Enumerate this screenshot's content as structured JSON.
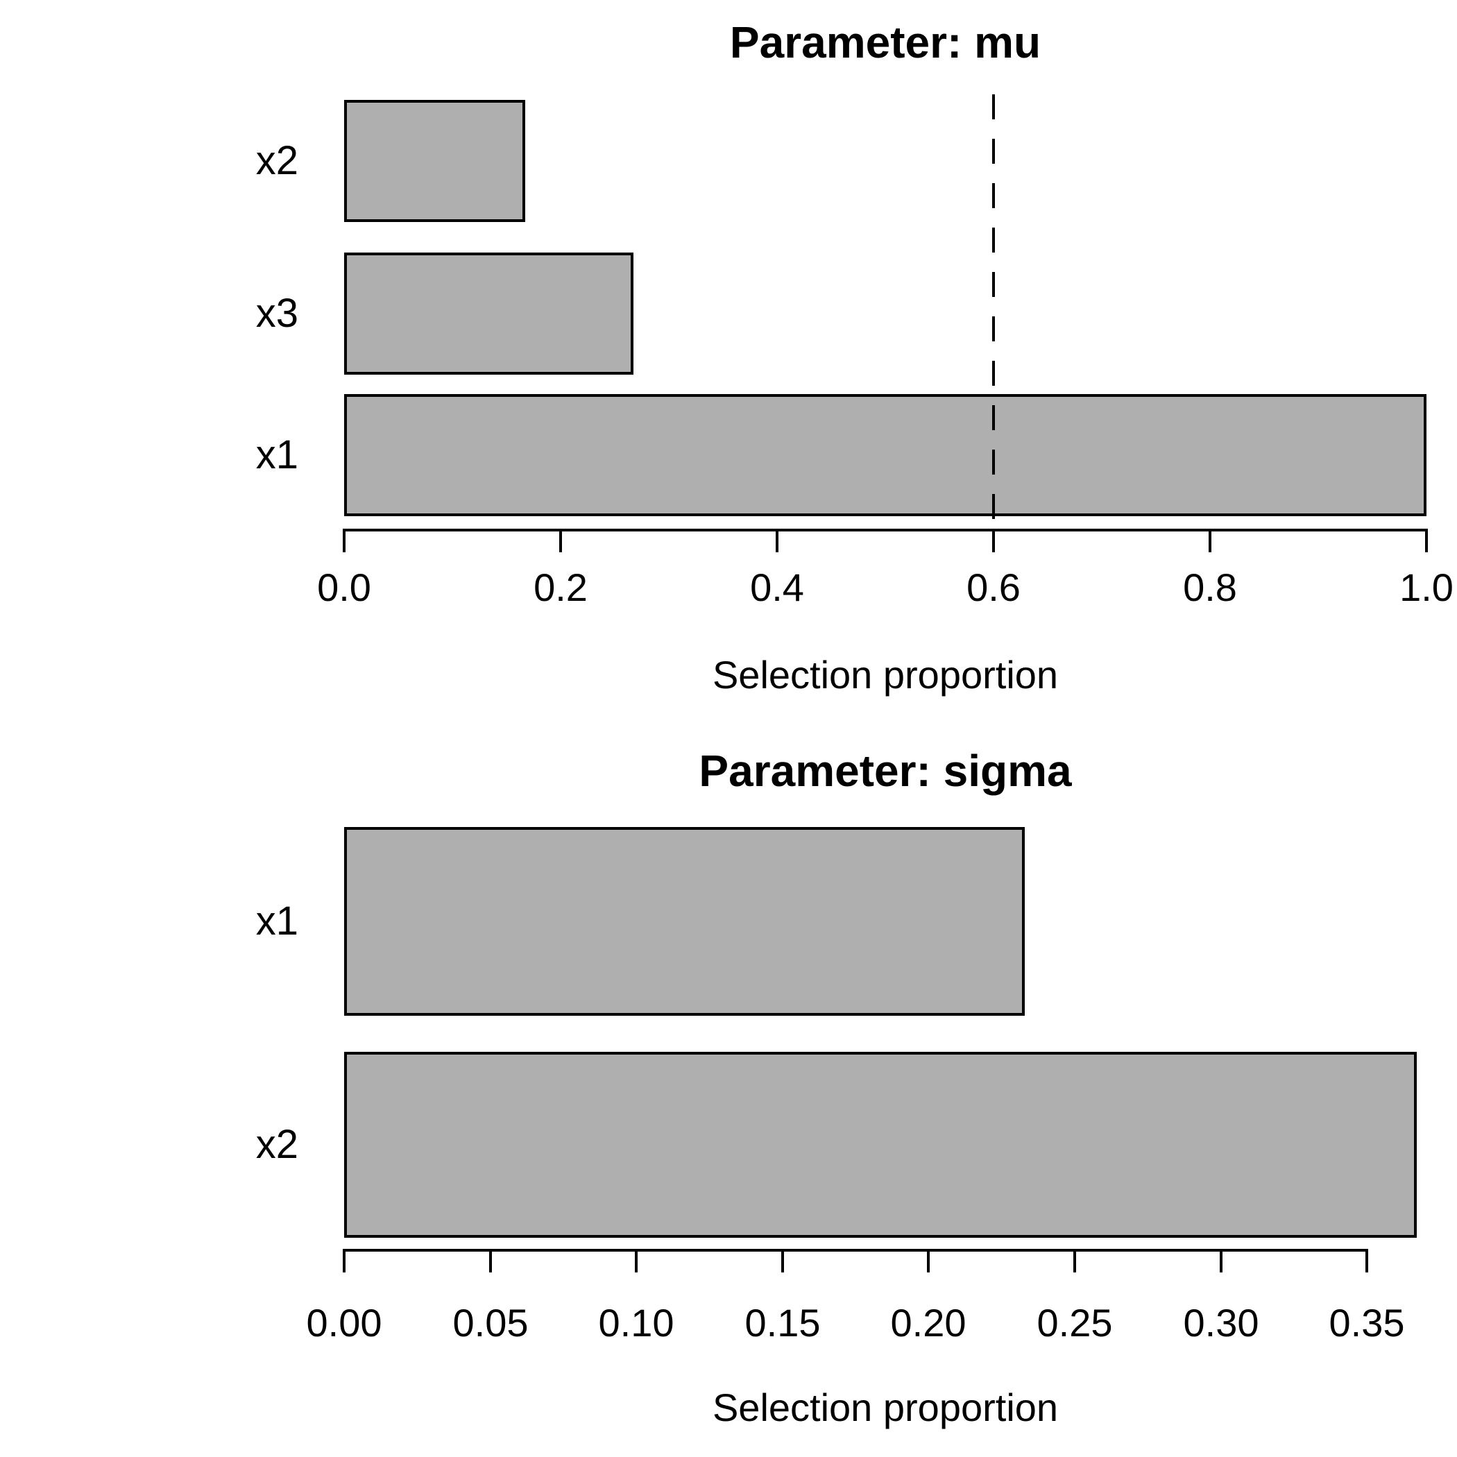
{
  "figure_background": "#ffffff",
  "chart_data": [
    {
      "type": "bar",
      "orientation": "horizontal",
      "title": "Parameter: mu",
      "xlabel": "Selection proportion",
      "categories": [
        "x2",
        "x3",
        "x1"
      ],
      "values": [
        0.167,
        0.267,
        1.0
      ],
      "xlim": [
        0.0,
        1.0
      ],
      "tick_values": [
        0.0,
        0.2,
        0.4,
        0.6,
        0.8,
        1.0
      ],
      "tick_labels": [
        "0.0",
        "0.2",
        "0.4",
        "0.6",
        "0.8",
        "1.0"
      ],
      "threshold_line": 0.6,
      "threshold_style": "dashed",
      "bar_color": "#AFAFAF",
      "bar_border": "#000000",
      "grid": false,
      "legend": "none"
    },
    {
      "type": "bar",
      "orientation": "horizontal",
      "title": "Parameter: sigma",
      "xlabel": "Selection proportion",
      "categories": [
        "x1",
        "x2"
      ],
      "values": [
        0.233,
        0.367
      ],
      "xlim": [
        0.0,
        0.37
      ],
      "tick_values": [
        0.0,
        0.05,
        0.1,
        0.15,
        0.2,
        0.25,
        0.3,
        0.35
      ],
      "tick_labels": [
        "0.00",
        "0.05",
        "0.10",
        "0.15",
        "0.20",
        "0.25",
        "0.30",
        "0.35"
      ],
      "threshold_line": null,
      "threshold_style": "dashed",
      "bar_color": "#AFAFAF",
      "bar_border": "#000000",
      "grid": false,
      "legend": "none"
    }
  ]
}
